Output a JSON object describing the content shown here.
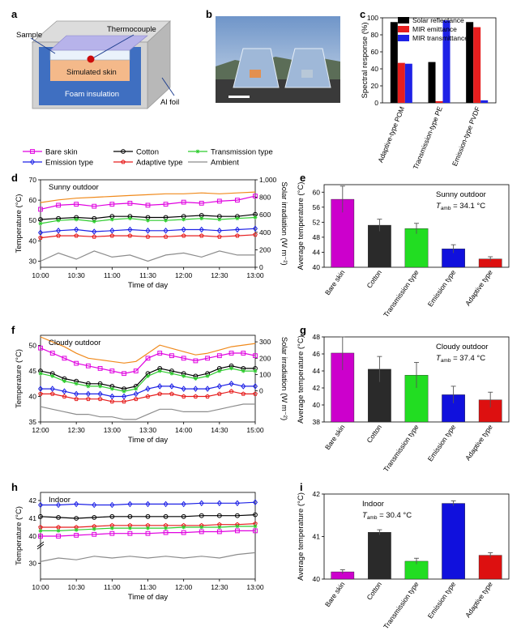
{
  "panels": {
    "a": "a",
    "b": "b",
    "c": "c",
    "d": "d",
    "e": "e",
    "f": "f",
    "g": "g",
    "h": "h",
    "i": "i"
  },
  "schematic": {
    "sample": "Sample",
    "thermocouple": "Thermocouple",
    "simulated_skin": "Simulated skin",
    "foam_insulation": "Foam insulation",
    "al_foil": "Al foil"
  },
  "legend_top": {
    "items": [
      {
        "label": "Bare skin",
        "color": "#e000e0",
        "marker": "square"
      },
      {
        "label": "Cotton",
        "color": "#000000",
        "marker": "circle"
      },
      {
        "label": "Transmission type",
        "color": "#2ecc2e",
        "marker": "star"
      },
      {
        "label": "Emission type",
        "color": "#1e22e6",
        "marker": "diamond"
      },
      {
        "label": "Adaptive type",
        "color": "#e61e1e",
        "marker": "pentagon"
      },
      {
        "label": "Ambient",
        "color": "#8c8c8c",
        "marker": "none"
      }
    ]
  },
  "chart_data": [
    {
      "id": "c",
      "type": "bar",
      "ylabel": "Spectral response (%)",
      "ylim": [
        0,
        100
      ],
      "yticks": [
        0,
        20,
        40,
        60,
        80,
        100
      ],
      "categories": [
        "Adaptive-type POM",
        "Transmission-type PE",
        "Emission-type PVDF"
      ],
      "series": [
        {
          "name": "Solar reflectance",
          "color": "#000000",
          "values": [
            95,
            48,
            95
          ]
        },
        {
          "name": "MIR emittance",
          "color": "#e61e1e",
          "values": [
            47,
            2,
            89
          ]
        },
        {
          "name": "MIR transmittance",
          "color": "#1e22e6",
          "values": [
            46,
            97,
            3
          ]
        }
      ],
      "legend_position": "top-right"
    },
    {
      "id": "d",
      "type": "line",
      "annotation": "Sunny outdoor",
      "xlabel": "Time of day",
      "ylabel": "Temperature (°C)",
      "y2label": "Solar irradiation (W m⁻²)",
      "xticks": [
        "10:00",
        "10:30",
        "11:00",
        "11:30",
        "12:00",
        "12:30",
        "13:00"
      ],
      "ylim": [
        27,
        70
      ],
      "yticks": [
        30,
        40,
        50,
        60,
        70
      ],
      "y2lim": [
        0,
        1000
      ],
      "y2ticks": [
        "0",
        "200",
        "400",
        "600",
        "800",
        "1,000"
      ],
      "x": [
        0,
        15,
        30,
        45,
        60,
        75,
        90,
        105,
        120,
        135,
        150,
        165,
        180
      ],
      "series": [
        {
          "name": "Bare skin",
          "values": [
            55.5,
            57.5,
            58,
            57,
            58,
            58.5,
            57.5,
            58,
            59,
            58.5,
            59.5,
            60,
            62
          ]
        },
        {
          "name": "Cotton",
          "values": [
            50.5,
            51,
            51.5,
            51,
            52,
            52,
            51.5,
            51.5,
            52,
            52.5,
            52,
            52,
            53
          ]
        },
        {
          "name": "Transmission type",
          "values": [
            48.5,
            50,
            50.5,
            49.5,
            50.5,
            51,
            50,
            50,
            50.5,
            51,
            50.5,
            51,
            51.5
          ]
        },
        {
          "name": "Emission type",
          "values": [
            44,
            45,
            45.5,
            44.5,
            45,
            45.5,
            45,
            45,
            45.5,
            45.5,
            45,
            45.5,
            46
          ]
        },
        {
          "name": "Adaptive type",
          "values": [
            41.5,
            42.5,
            42.5,
            42,
            42.5,
            42.5,
            42,
            42,
            42.5,
            42.5,
            42,
            42.5,
            43
          ]
        },
        {
          "name": "Ambient",
          "values": [
            30,
            34,
            31,
            35,
            32,
            33,
            30,
            33,
            34,
            32,
            35,
            33,
            33
          ]
        },
        {
          "name": "Solar irradiation",
          "axis": "right",
          "values": [
            740,
            770,
            790,
            800,
            810,
            820,
            830,
            840,
            840,
            850,
            840,
            850,
            860
          ]
        }
      ]
    },
    {
      "id": "e",
      "type": "bar",
      "annotation": "Sunny outdoor",
      "tamb": "34.1 °C",
      "ylabel": "Average temperature (°C)",
      "ylim": [
        40,
        62
      ],
      "yticks": [
        40,
        44,
        48,
        52,
        56,
        60
      ],
      "categories": [
        "Bare skin",
        "Cotton",
        "Transmission type",
        "Emission type",
        "Adaptive type"
      ],
      "values": [
        58.1,
        51.2,
        50.3,
        44.9,
        42.2
      ],
      "errors": [
        3.5,
        1.6,
        1.4,
        1.1,
        0.6
      ],
      "colors": [
        "#cc00cc",
        "#2a2a2a",
        "#22dd22",
        "#1010dd",
        "#dd1010"
      ]
    },
    {
      "id": "f",
      "type": "line",
      "annotation": "Cloudy outdoor",
      "xlabel": "Time of day",
      "ylabel": "Temperature (°C)",
      "y2label": "Solar irradiation (W m⁻²)",
      "xticks": [
        "12:00",
        "12:30",
        "13:00",
        "13:30",
        "14:00",
        "14:30",
        "15:00"
      ],
      "ylim": [
        35,
        52
      ],
      "yticks": [
        35,
        40,
        45,
        50
      ],
      "y2lim": [
        -190,
        340
      ],
      "y2ticks": [
        "0",
        "100",
        "200",
        "300"
      ],
      "x": [
        0,
        10,
        20,
        30,
        40,
        50,
        60,
        70,
        80,
        90,
        100,
        110,
        120,
        130,
        140,
        150,
        160,
        170,
        180
      ],
      "series": [
        {
          "name": "Bare skin",
          "values": [
            49.5,
            48.5,
            47.5,
            46.5,
            46,
            45.5,
            45,
            44.5,
            45,
            47.5,
            48.5,
            48,
            47.5,
            47,
            47.5,
            48,
            48.5,
            48.5,
            48
          ]
        },
        {
          "name": "Cotton",
          "values": [
            45,
            44.5,
            43.5,
            43,
            42.5,
            42.5,
            42,
            41.5,
            42,
            44.5,
            45.5,
            45,
            44.5,
            44,
            44.5,
            45.5,
            46,
            45.5,
            45.5
          ]
        },
        {
          "name": "Transmission type",
          "values": [
            44.5,
            44,
            43,
            42.5,
            42,
            42,
            41.5,
            41,
            41.5,
            44,
            45,
            44.5,
            44,
            43.5,
            44,
            45,
            45.5,
            45,
            45
          ]
        },
        {
          "name": "Emission type",
          "values": [
            41.5,
            41.5,
            41,
            40.5,
            40.5,
            40.5,
            40,
            40,
            40.5,
            41.5,
            42,
            42,
            41.5,
            41.5,
            41.5,
            42,
            42.5,
            42,
            42
          ]
        },
        {
          "name": "Adaptive type",
          "values": [
            40.5,
            40.5,
            40,
            39.5,
            39.5,
            39.5,
            39,
            39,
            39.5,
            40,
            40.5,
            40.5,
            40,
            40,
            40,
            40.5,
            41,
            40.5,
            40.5
          ]
        },
        {
          "name": "Ambient",
          "values": [
            38,
            37.5,
            37,
            36.5,
            36.5,
            36,
            36,
            35.5,
            35.5,
            36.5,
            37.5,
            37.5,
            37,
            37,
            37,
            37.5,
            38,
            38.5,
            38.5
          ]
        },
        {
          "name": "Solar irradiation",
          "axis": "right",
          "values": [
            330,
            300,
            270,
            230,
            200,
            190,
            180,
            170,
            180,
            230,
            280,
            260,
            240,
            220,
            230,
            250,
            270,
            280,
            290
          ]
        }
      ]
    },
    {
      "id": "g",
      "type": "bar",
      "annotation": "Cloudy outdoor",
      "tamb": "37.4 °C",
      "ylabel": "Average temperature (°C)",
      "ylim": [
        38,
        48
      ],
      "yticks": [
        38,
        40,
        42,
        44,
        46,
        48
      ],
      "categories": [
        "Bare skin",
        "Cotton",
        "Transmission type",
        "Emission type",
        "Adaptive type"
      ],
      "values": [
        46.1,
        44.2,
        43.5,
        41.2,
        40.6
      ],
      "errors": [
        2.0,
        1.5,
        1.5,
        1.0,
        0.9
      ],
      "colors": [
        "#cc00cc",
        "#2a2a2a",
        "#22dd22",
        "#1010dd",
        "#dd1010"
      ]
    },
    {
      "id": "h",
      "type": "line",
      "annotation": "Indoor",
      "xlabel": "Time of day",
      "ylabel": "Temperature (°C)",
      "xticks": [
        "10:00",
        "10:30",
        "11:00",
        "11:30",
        "12:00",
        "12:30",
        "13:00"
      ],
      "yticks": [
        30,
        40,
        41,
        42
      ],
      "ybreaks": "broken axis between 30 and 40",
      "x": [
        0,
        15,
        30,
        45,
        60,
        75,
        90,
        105,
        120,
        135,
        150,
        165,
        180
      ],
      "series": [
        {
          "name": "Emission type",
          "values": [
            41.75,
            41.75,
            41.8,
            41.75,
            41.75,
            41.8,
            41.8,
            41.8,
            41.8,
            41.85,
            41.85,
            41.85,
            41.9
          ]
        },
        {
          "name": "Cotton",
          "values": [
            41.1,
            41.05,
            41.0,
            41.05,
            41.1,
            41.1,
            41.1,
            41.1,
            41.1,
            41.15,
            41.15,
            41.15,
            41.2
          ]
        },
        {
          "name": "Adaptive type",
          "values": [
            40.5,
            40.5,
            40.5,
            40.55,
            40.6,
            40.6,
            40.6,
            40.6,
            40.6,
            40.6,
            40.65,
            40.65,
            40.7
          ]
        },
        {
          "name": "Transmission type",
          "values": [
            40.3,
            40.3,
            40.35,
            40.4,
            40.45,
            40.45,
            40.45,
            40.45,
            40.5,
            40.5,
            40.5,
            40.55,
            40.55
          ]
        },
        {
          "name": "Bare skin",
          "values": [
            40.0,
            40.0,
            40.05,
            40.1,
            40.15,
            40.15,
            40.15,
            40.2,
            40.2,
            40.25,
            40.25,
            40.3,
            40.3
          ]
        },
        {
          "name": "Ambient",
          "values": [
            30.5,
            31.5,
            31,
            32,
            31.5,
            32,
            31.5,
            32,
            31.5,
            32,
            31.5,
            32.5,
            33
          ]
        }
      ]
    },
    {
      "id": "i",
      "type": "bar",
      "annotation": "Indoor",
      "tamb": "30.4 °C",
      "ylabel": "Average temperature (°C)",
      "ylim": [
        40,
        42
      ],
      "yticks": [
        40,
        41,
        42
      ],
      "categories": [
        "Bare skin",
        "Cotton",
        "Transmission type",
        "Emission type",
        "Adaptive type"
      ],
      "values": [
        40.17,
        41.1,
        40.42,
        41.78,
        40.56
      ],
      "errors": [
        0.05,
        0.06,
        0.07,
        0.06,
        0.06
      ],
      "colors": [
        "#cc00cc",
        "#2a2a2a",
        "#22dd22",
        "#1010dd",
        "#dd1010"
      ]
    }
  ]
}
